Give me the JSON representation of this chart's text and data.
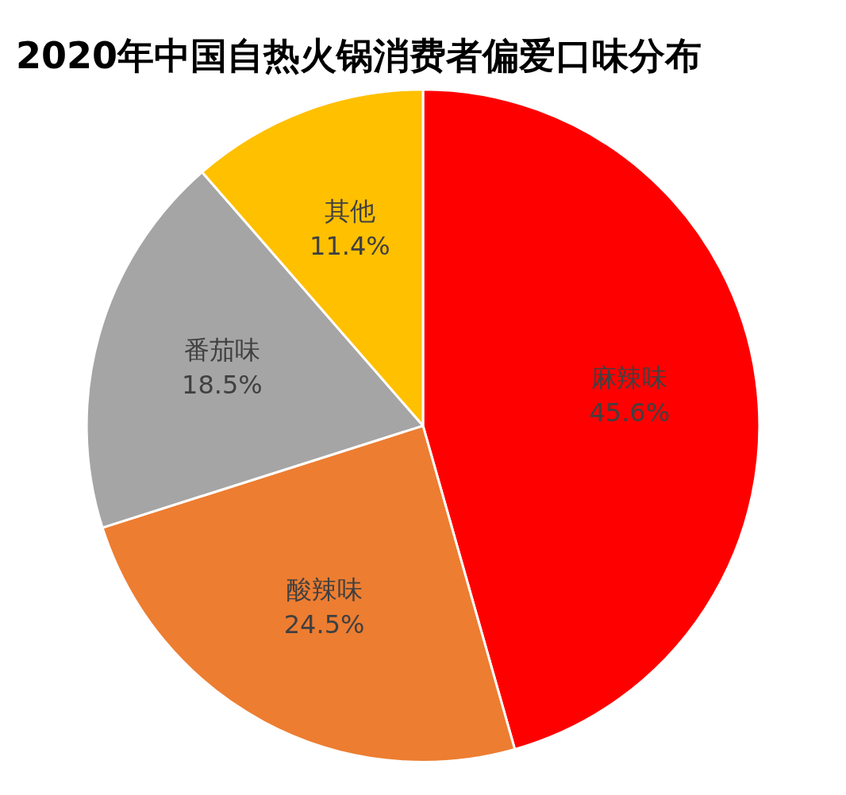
{
  "chart_data": {
    "type": "pie",
    "title": "2020年中国自热火锅消费者偏爱口味分布",
    "categories": [
      "麻辣味",
      "酸辣味",
      "番茄味",
      "其他"
    ],
    "values": [
      45.6,
      24.5,
      18.5,
      11.4
    ],
    "value_labels": [
      "45.6%",
      "24.5%",
      "18.5%",
      "11.4%"
    ],
    "colors": [
      "#ff0000",
      "#ed7d31",
      "#a5a5a5",
      "#ffc000"
    ],
    "legend": false
  }
}
